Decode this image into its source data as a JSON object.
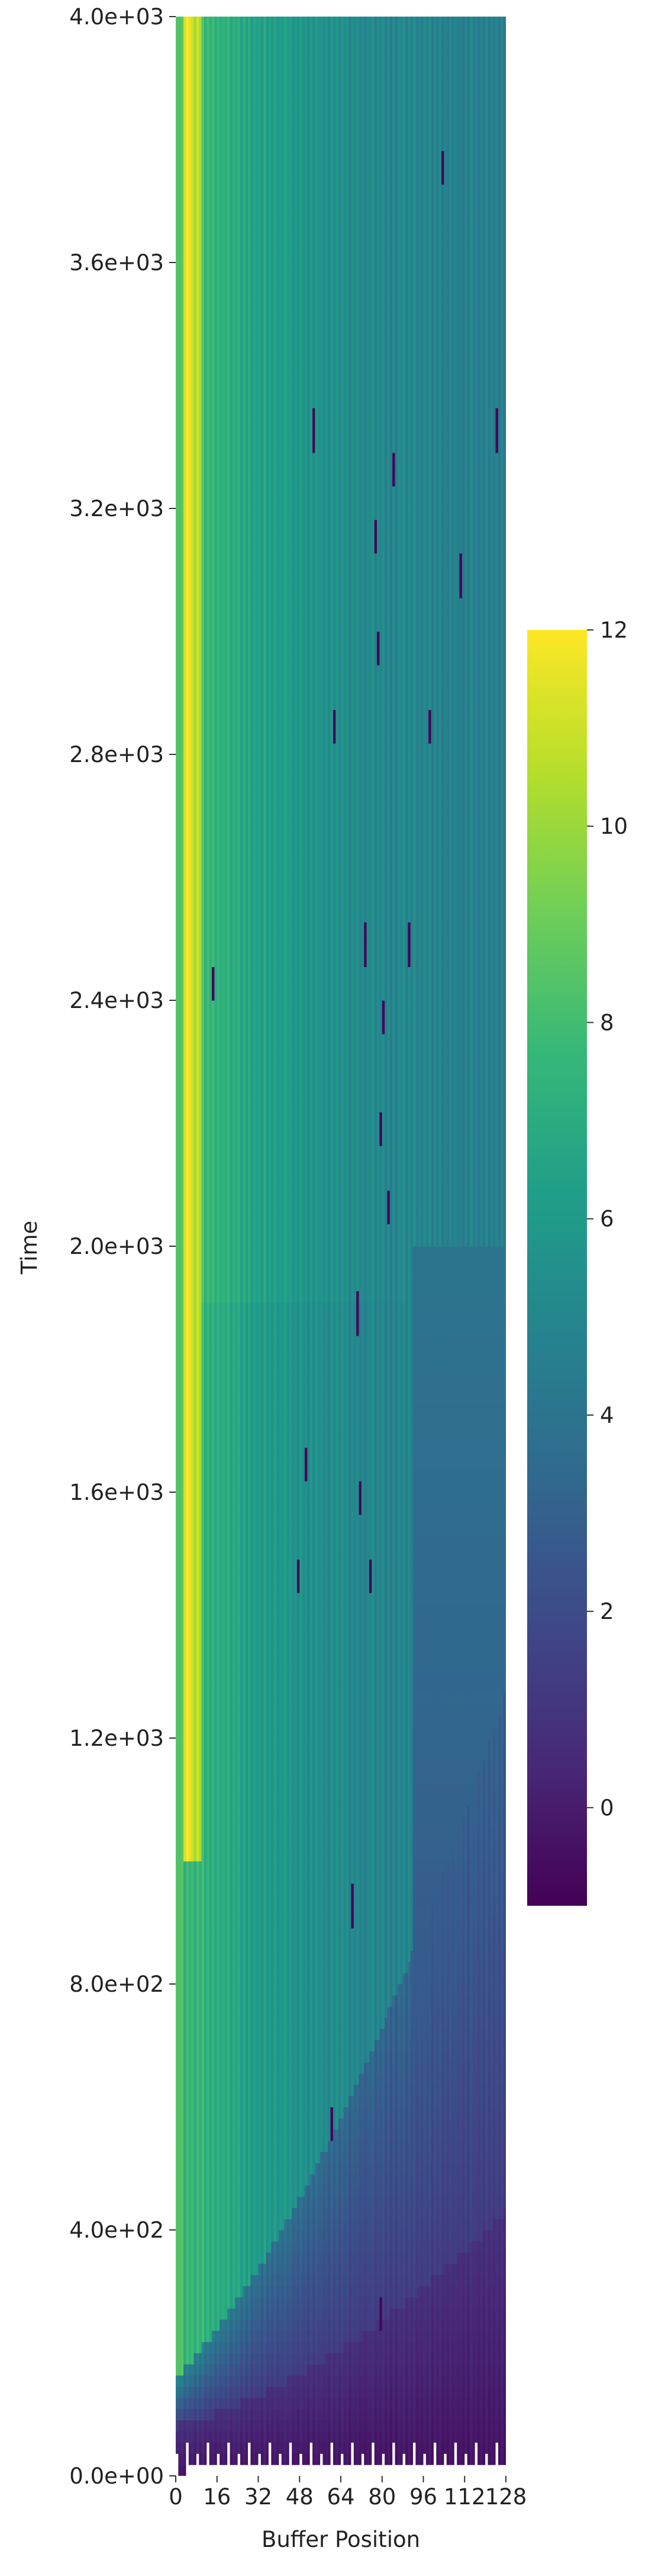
{
  "chart_data": {
    "type": "heatmap",
    "title": "",
    "xlabel": "Buffer Position",
    "ylabel": "Time",
    "x_ticks": [
      {
        "value": 0,
        "label": "0"
      },
      {
        "value": 16,
        "label": "16"
      },
      {
        "value": 32,
        "label": "32"
      },
      {
        "value": 48,
        "label": "48"
      },
      {
        "value": 64,
        "label": "64"
      },
      {
        "value": 80,
        "label": "80"
      },
      {
        "value": 96,
        "label": "96"
      },
      {
        "value": 112,
        "label": "112"
      },
      {
        "value": 128,
        "label": "128"
      }
    ],
    "y_ticks": [
      {
        "value": 0,
        "label": "0.0e+00"
      },
      {
        "value": 400,
        "label": "4.0e+02"
      },
      {
        "value": 800,
        "label": "8.0e+02"
      },
      {
        "value": 1200,
        "label": "1.2e+03"
      },
      {
        "value": 1600,
        "label": "1.6e+03"
      },
      {
        "value": 2000,
        "label": "2.0e+03"
      },
      {
        "value": 2400,
        "label": "2.4e+03"
      },
      {
        "value": 2800,
        "label": "2.8e+03"
      },
      {
        "value": 3200,
        "label": "3.2e+03"
      },
      {
        "value": 3600,
        "label": "3.6e+03"
      },
      {
        "value": 4000,
        "label": "4.0e+03"
      }
    ],
    "xlim": [
      0,
      128
    ],
    "ylim": [
      0,
      4000
    ],
    "colorbar": {
      "cmap": "viridis",
      "vmin": -1,
      "vmax": 12,
      "ticks": [
        {
          "value": 0,
          "label": "0"
        },
        {
          "value": 2,
          "label": "2"
        },
        {
          "value": 4,
          "label": "4"
        },
        {
          "value": 6,
          "label": "6"
        },
        {
          "value": 8,
          "label": "8"
        },
        {
          "value": 10,
          "label": "10"
        },
        {
          "value": 12,
          "label": "12"
        }
      ]
    },
    "colors": {
      "viridis": [
        "#440154",
        "#482878",
        "#3e4989",
        "#31688e",
        "#26828e",
        "#1f9e89",
        "#35b779",
        "#6ece58",
        "#b5de2b",
        "#fde725"
      ],
      "empty": "#ffffff"
    },
    "description": [
      "Low values (dark purple, about -1 to 1) fill a wedge at the bottom-right: full width near time 0, narrowing toward low buffer positions as time grows.",
      "Values rise to about 4 to 5 (teal-blue) over most of the right half at high times.",
      "High values (green to yellow, 8 to 12) sit in a narrow strip at buffer positions 0 to 10, yellow above time of about 1000.",
      "Vertical stripe texture from alternating columns; a few isolated dark-purple dashes."
    ],
    "grid": false,
    "legend": "colorbar-right"
  }
}
